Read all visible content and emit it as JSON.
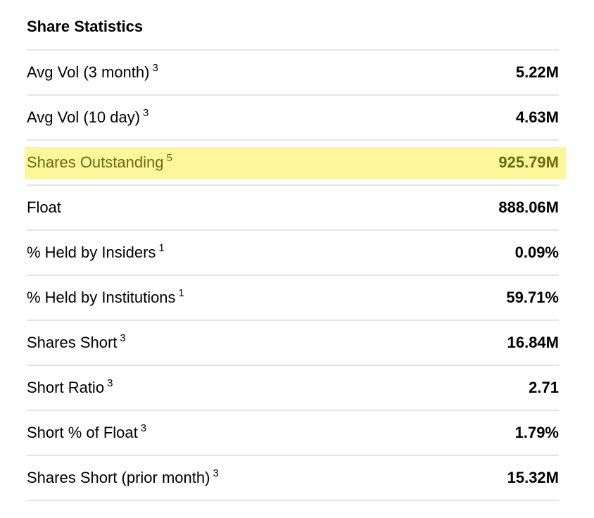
{
  "section": {
    "title": "Share Statistics"
  },
  "rows": [
    {
      "label": "Avg Vol (3 month)",
      "note": "3",
      "value": "5.22M"
    },
    {
      "label": "Avg Vol (10 day)",
      "note": "3",
      "value": "4.63M"
    },
    {
      "label": "Shares Outstanding",
      "note": "5",
      "value": "925.79M"
    },
    {
      "label": "Float",
      "note": "",
      "value": "888.06M"
    },
    {
      "label": "% Held by Insiders",
      "note": "1",
      "value": "0.09%"
    },
    {
      "label": "% Held by Institutions",
      "note": "1",
      "value": "59.71%"
    },
    {
      "label": "Shares Short",
      "note": "3",
      "value": "16.84M"
    },
    {
      "label": "Short Ratio",
      "note": "3",
      "value": "2.71"
    },
    {
      "label": "Short % of Float",
      "note": "3",
      "value": "1.79%"
    },
    {
      "label": "Shares Short (prior month)",
      "note": "3",
      "value": "15.32M"
    }
  ],
  "highlight_color": "#fdf79b"
}
